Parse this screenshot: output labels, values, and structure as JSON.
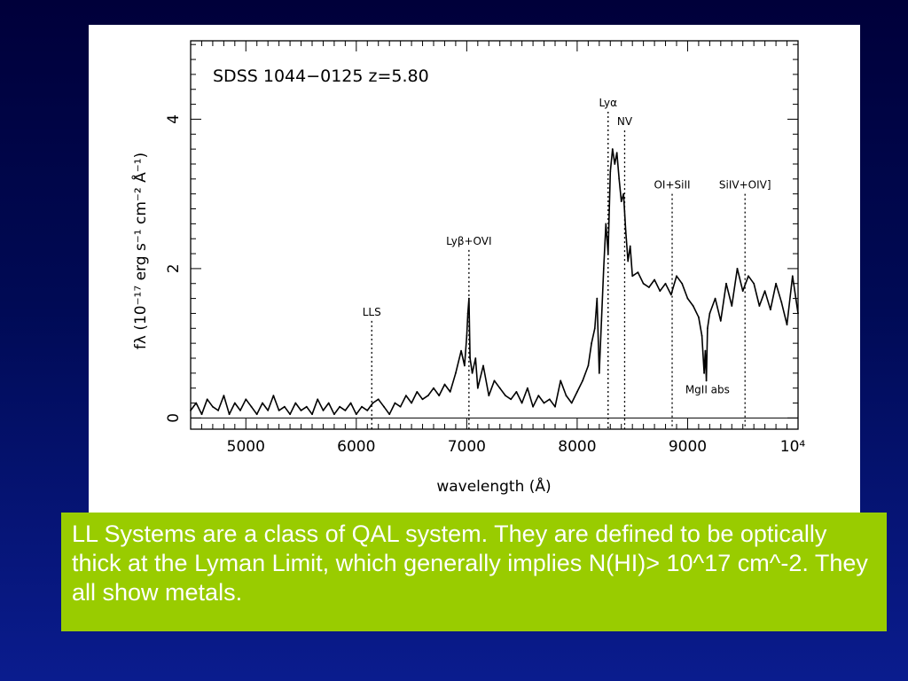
{
  "chart_data": {
    "type": "line",
    "object_label": "SDSS 1044−0125 z=5.80",
    "xlabel": "wavelength (Å)",
    "ylabel": "fλ (10⁻¹⁷ erg s⁻¹ cm⁻² Å⁻¹)",
    "xlim": [
      4500,
      10000
    ],
    "ylim": [
      -0.15,
      5.05
    ],
    "x_ticks": [
      {
        "value": 5000,
        "label": "5000"
      },
      {
        "value": 6000,
        "label": "6000"
      },
      {
        "value": 7000,
        "label": "7000"
      },
      {
        "value": 8000,
        "label": "8000"
      },
      {
        "value": 9000,
        "label": "9000"
      },
      {
        "value": 10000,
        "label": "10⁴"
      }
    ],
    "y_ticks": [
      {
        "value": 0,
        "label": "0"
      },
      {
        "value": 2,
        "label": "2"
      },
      {
        "value": 4,
        "label": "4"
      }
    ],
    "line_markers": [
      {
        "label": "LLS",
        "x": 6140,
        "y_top": 1.3
      },
      {
        "label": "Lyβ+OVI",
        "x": 7020,
        "y_top": 2.25
      },
      {
        "label": "Lyα",
        "x": 8280,
        "y_top": 4.1
      },
      {
        "label": "NV",
        "x": 8430,
        "y_top": 3.85
      },
      {
        "label": "OI+SiII",
        "x": 8860,
        "y_top": 3.0
      },
      {
        "label": "SiIV+OIV]",
        "x": 9520,
        "y_top": 3.0
      }
    ],
    "annotations": [
      {
        "text": "MgII abs",
        "x": 9180,
        "y": 0.33
      }
    ],
    "series": [
      {
        "x": [
          4500,
          4550,
          4600,
          4650,
          4700,
          4750,
          4800,
          4850,
          4900,
          4950,
          5000,
          5050,
          5100,
          5150,
          5200,
          5250,
          5300,
          5350,
          5400,
          5450,
          5500,
          5550,
          5600,
          5650,
          5700,
          5750,
          5800,
          5850,
          5900,
          5950,
          6000,
          6050,
          6100,
          6150,
          6200,
          6250,
          6300,
          6350,
          6400,
          6450,
          6500,
          6550,
          6600,
          6650,
          6700,
          6750,
          6800,
          6850,
          6900,
          6950,
          6980,
          7000,
          7010,
          7020,
          7030,
          7050,
          7080,
          7100,
          7150,
          7200,
          7250,
          7300,
          7350,
          7400,
          7450,
          7500,
          7550,
          7600,
          7650,
          7700,
          7750,
          7800,
          7850,
          7900,
          7950,
          8000,
          8050,
          8100,
          8130,
          8160,
          8180,
          8200,
          8220,
          8240,
          8260,
          8280,
          8300,
          8320,
          8340,
          8360,
          8380,
          8400,
          8420,
          8440,
          8460,
          8480,
          8500,
          8550,
          8600,
          8650,
          8700,
          8750,
          8800,
          8850,
          8900,
          8950,
          9000,
          9050,
          9100,
          9130,
          9150,
          9160,
          9170,
          9180,
          9200,
          9250,
          9300,
          9350,
          9400,
          9450,
          9500,
          9550,
          9600,
          9650,
          9700,
          9750,
          9800,
          9850,
          9900,
          9950,
          10000
        ],
        "y": [
          0.1,
          0.2,
          0.05,
          0.25,
          0.15,
          0.1,
          0.3,
          0.05,
          0.2,
          0.1,
          0.25,
          0.15,
          0.05,
          0.2,
          0.1,
          0.3,
          0.1,
          0.15,
          0.05,
          0.2,
          0.1,
          0.15,
          0.05,
          0.25,
          0.1,
          0.2,
          0.05,
          0.15,
          0.1,
          0.2,
          0.05,
          0.15,
          0.1,
          0.2,
          0.25,
          0.15,
          0.05,
          0.2,
          0.15,
          0.3,
          0.2,
          0.35,
          0.25,
          0.3,
          0.4,
          0.3,
          0.45,
          0.35,
          0.6,
          0.9,
          0.7,
          1.1,
          1.4,
          1.6,
          0.8,
          0.6,
          0.8,
          0.4,
          0.7,
          0.3,
          0.5,
          0.4,
          0.3,
          0.25,
          0.35,
          0.2,
          0.4,
          0.15,
          0.3,
          0.2,
          0.25,
          0.15,
          0.5,
          0.3,
          0.2,
          0.35,
          0.5,
          0.7,
          1.0,
          1.2,
          1.6,
          0.6,
          1.3,
          2.0,
          2.6,
          2.2,
          3.3,
          3.6,
          3.4,
          3.55,
          3.2,
          2.9,
          3.0,
          2.5,
          2.1,
          2.3,
          1.9,
          1.95,
          1.8,
          1.75,
          1.85,
          1.7,
          1.8,
          1.65,
          1.9,
          1.8,
          1.6,
          1.5,
          1.35,
          1.1,
          0.6,
          0.9,
          0.5,
          1.2,
          1.4,
          1.6,
          1.3,
          1.8,
          1.5,
          2.0,
          1.7,
          1.9,
          1.8,
          1.5,
          1.7,
          1.45,
          1.8,
          1.55,
          1.25,
          1.9,
          1.4
        ]
      }
    ]
  },
  "caption": {
    "text": "LL Systems are a class of QAL system.  They are defined to be optically thick at the Lyman Limit, which generally implies N(HI)> 10^17 cm^-2.  They all show metals."
  }
}
